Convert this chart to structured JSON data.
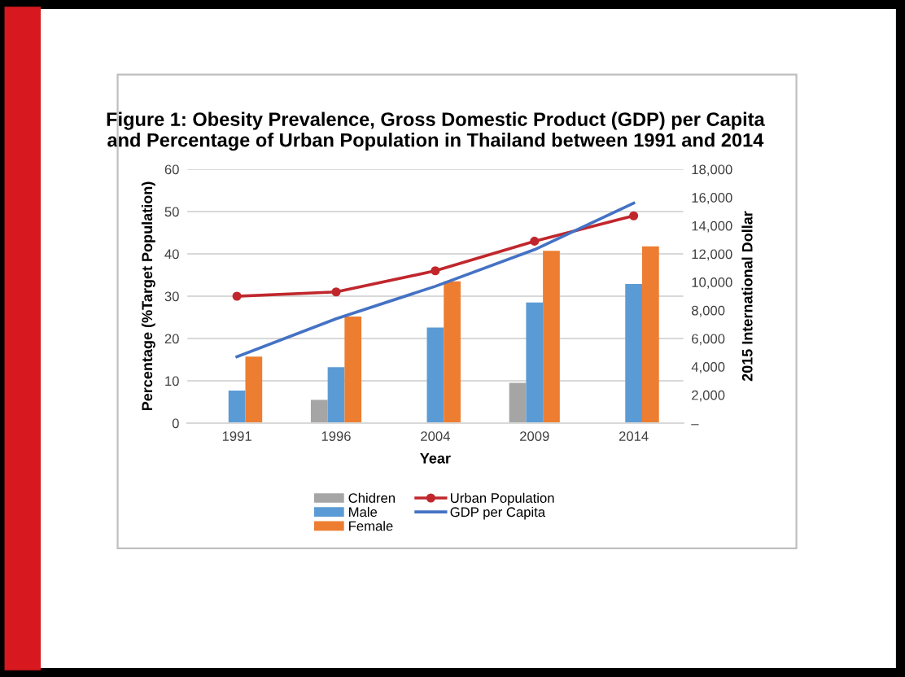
{
  "chart_data": {
    "type": "bar",
    "title": "Figure 1: Obesity Prevalence, Gross Domestic Product (GDP) per Capita\nand Percentage of Urban Population in Thailand between 1991 and 2014",
    "xlabel": "Year",
    "ylabel": "Percentage (%Target Population)",
    "y2label": "2015 International Dollar",
    "categories": [
      "1991",
      "1996",
      "2004",
      "2009",
      "2014"
    ],
    "series": [
      {
        "name": "Chidren",
        "color": "#a5a5a5",
        "values": [
          null,
          5.5,
          null,
          9.5,
          null
        ]
      },
      {
        "name": "Male",
        "color": "#5b9bd5",
        "values": [
          7.7,
          13.2,
          22.6,
          28.5,
          32.9
        ]
      },
      {
        "name": "Female",
        "color": "#ed7d31",
        "values": [
          15.7,
          25.2,
          33.5,
          40.7,
          41.8
        ]
      },
      {
        "name": "Urban Population",
        "type": "line",
        "color": "#c0272d",
        "marker": "circle",
        "values": [
          30,
          31,
          36,
          43,
          49
        ]
      },
      {
        "name": "GDP per Capita",
        "type": "line",
        "axis": "y2",
        "color": "#4472c4",
        "marker": "none",
        "values": [
          4700,
          7400,
          9700,
          12300,
          15600
        ]
      }
    ],
    "ylim": [
      0,
      60
    ],
    "yticks": [
      0,
      10,
      20,
      30,
      40,
      50,
      60
    ],
    "y2lim": [
      0,
      18000
    ],
    "y2ticks": [
      {
        "value": 0,
        "label": "–"
      },
      {
        "value": 2000,
        "label": "2,000"
      },
      {
        "value": 4000,
        "label": "4,000"
      },
      {
        "value": 6000,
        "label": "6,000"
      },
      {
        "value": 8000,
        "label": "8,000"
      },
      {
        "value": 10000,
        "label": "10,000"
      },
      {
        "value": 12000,
        "label": "12,000"
      },
      {
        "value": 14000,
        "label": "14,000"
      },
      {
        "value": 16000,
        "label": "16,000"
      },
      {
        "value": 18000,
        "label": "18,000"
      }
    ],
    "grid": "y",
    "legend": "bottom"
  }
}
